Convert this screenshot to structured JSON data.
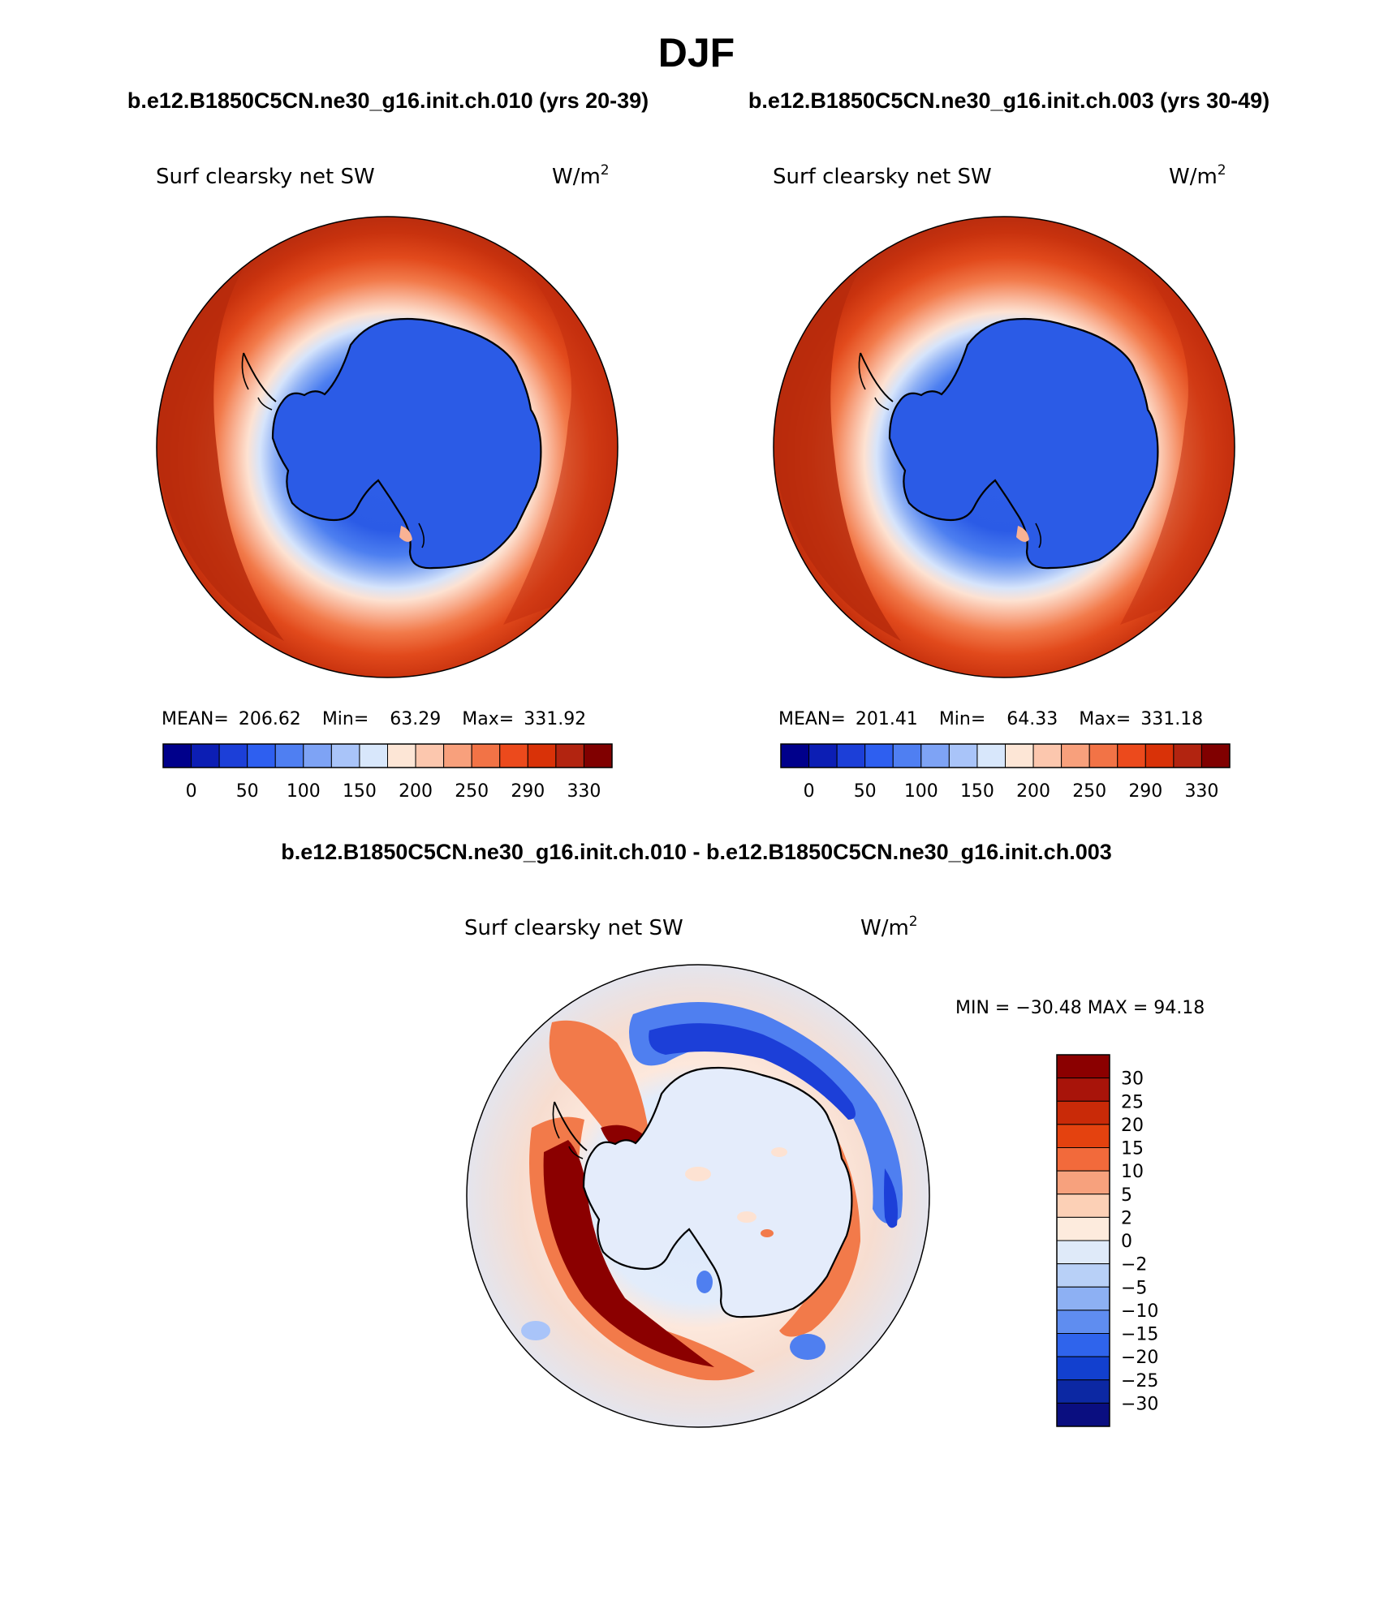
{
  "page": {
    "title": "DJF",
    "top_left_case": "b.e12.B1850C5CN.ne30_g16.init.ch.010 (yrs 20-39)",
    "top_right_case": "b.e12.B1850C5CN.ne30_g16.init.ch.003 (yrs 30-49)",
    "diff_title": "b.e12.B1850C5CN.ne30_g16.init.ch.010 - b.e12.B1850C5CN.ne30_g16.init.ch.003"
  },
  "panels": [
    {
      "id": "left",
      "variable": "Surf clearsky net SW",
      "units_base": "W/m",
      "units_exp": "2",
      "stats": {
        "mean_label": "MEAN=",
        "mean": "206.62",
        "min_label": "Min=",
        "min": "63.29",
        "max_label": "Max=",
        "max": "331.92"
      }
    },
    {
      "id": "right",
      "variable": "Surf clearsky net SW",
      "units_base": "W/m",
      "units_exp": "2",
      "stats": {
        "mean_label": "MEAN=",
        "mean": "201.41",
        "min_label": "Min=",
        "min": "64.33",
        "max_label": "Max=",
        "max": "331.18"
      }
    },
    {
      "id": "diff",
      "variable": "Surf clearsky net SW",
      "units_base": "W/m",
      "units_exp": "2",
      "stats_text": "MIN = −30.48 MAX =  94.18"
    }
  ],
  "colorbars": {
    "horizontal": {
      "colors": [
        "#00008b",
        "#0c1eb4",
        "#1c3fd8",
        "#2e5ff0",
        "#4f7ff2",
        "#7ea3f5",
        "#a9c4f9",
        "#d8e7fb",
        "#fde6d6",
        "#fcc7ae",
        "#f8a07c",
        "#f27346",
        "#ec4a1c",
        "#d93208",
        "#b22410",
        "#800000"
      ],
      "tick_labels": [
        "0",
        "50",
        "100",
        "150",
        "200",
        "250",
        "290",
        "330"
      ]
    },
    "vertical": {
      "colors_top_to_bottom": [
        "#8b0000",
        "#a8140a",
        "#c92a08",
        "#e4420f",
        "#f26a3b",
        "#f7a17d",
        "#fcd0b6",
        "#fdebdd",
        "#dfeaf9",
        "#b8d0f7",
        "#8db0f3",
        "#5f8df0",
        "#2f64ec",
        "#1240cf",
        "#0c28a3",
        "#0a0e80"
      ],
      "tick_labels": [
        "30",
        "25",
        "20",
        "15",
        "10",
        "5",
        "2",
        "0",
        "−2",
        "−5",
        "−10",
        "−15",
        "−20",
        "−25",
        "−30"
      ]
    }
  }
}
